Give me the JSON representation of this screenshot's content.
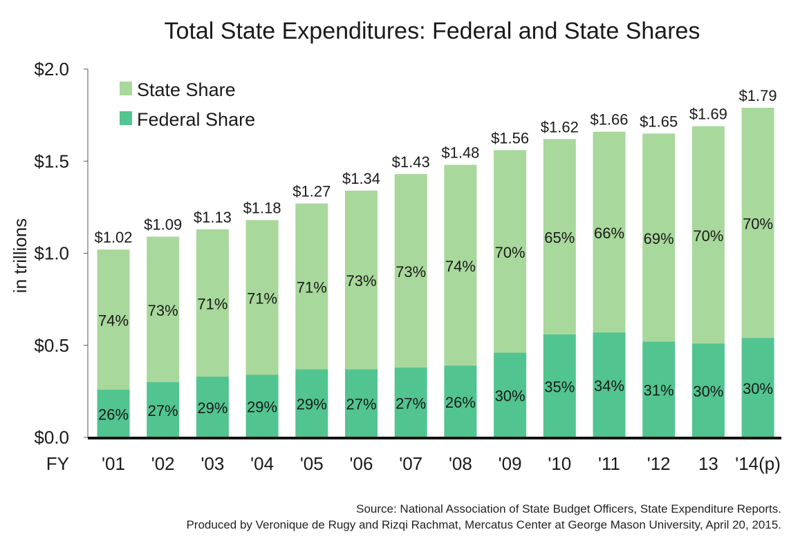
{
  "chart_data": {
    "type": "bar",
    "stacked": true,
    "title": "Total State Expenditures: Federal and State Shares",
    "ylabel": "in trillions",
    "xlabel": "FY",
    "ylim": [
      0,
      2.0
    ],
    "yticks": [
      "$0.0",
      "$0.5",
      "$1.0",
      "$1.5",
      "$2.0"
    ],
    "categories": [
      "'01",
      "'02",
      "'03",
      "'04",
      "'05",
      "'06",
      "'07",
      "'08",
      "'09",
      "'10",
      "'11",
      "'12",
      "13",
      "'14(p)"
    ],
    "totals": [
      1.02,
      1.09,
      1.13,
      1.18,
      1.27,
      1.34,
      1.43,
      1.48,
      1.56,
      1.62,
      1.66,
      1.65,
      1.69,
      1.79
    ],
    "total_labels": [
      "$1.02",
      "$1.09",
      "$1.13",
      "$1.18",
      "$1.27",
      "$1.34",
      "$1.43",
      "$1.48",
      "$1.56",
      "$1.62",
      "$1.66",
      "$1.65",
      "$1.69",
      "$1.79"
    ],
    "series": [
      {
        "name": "Federal Share",
        "color": "#52c48f",
        "values": [
          0.26,
          0.3,
          0.33,
          0.34,
          0.37,
          0.37,
          0.38,
          0.39,
          0.46,
          0.56,
          0.57,
          0.52,
          0.51,
          0.54
        ],
        "percent_labels": [
          "26%",
          "27%",
          "29%",
          "29%",
          "29%",
          "27%",
          "27%",
          "26%",
          "30%",
          "35%",
          "34%",
          "31%",
          "30%",
          "30%"
        ]
      },
      {
        "name": "State Share",
        "color": "#a8d89b",
        "values": [
          0.76,
          0.79,
          0.8,
          0.84,
          0.9,
          0.97,
          1.05,
          1.09,
          1.1,
          1.06,
          1.09,
          1.13,
          1.18,
          1.25
        ],
        "percent_labels": [
          "74%",
          "73%",
          "71%",
          "71%",
          "71%",
          "73%",
          "73%",
          "74%",
          "70%",
          "65%",
          "66%",
          "69%",
          "70%",
          "70%"
        ]
      }
    ],
    "legend": "top-left",
    "grid": false
  },
  "source": {
    "line1": "Source: National Association of State Budget Officers, State Expenditure Reports.",
    "line2": "Produced by Veronique de Rugy and Rizqi Rachmat, Mercatus Center at George Mason University, April 20, 2015."
  }
}
